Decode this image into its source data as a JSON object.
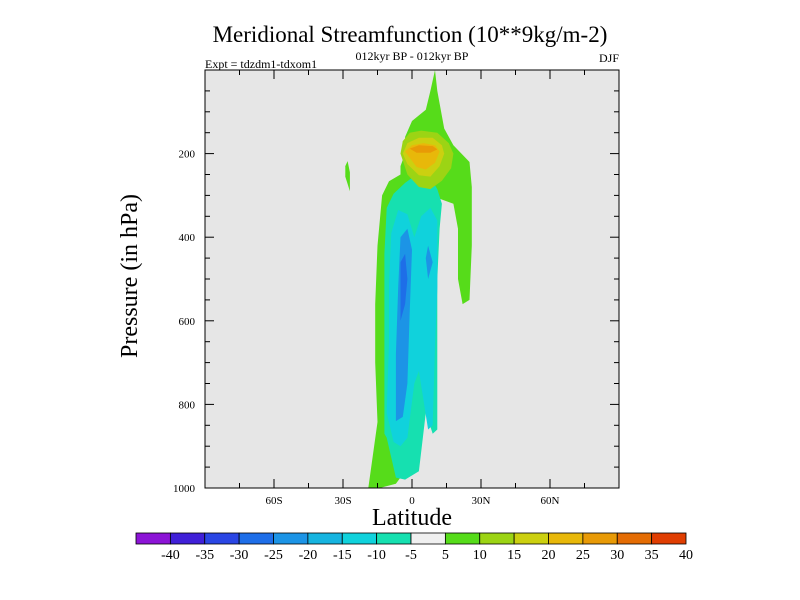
{
  "chart_data": {
    "type": "heatmap",
    "title": "Meridional Streamfunction (10**9kg/m-2)",
    "left_subtitle": "Expt = tdzdm1-tdxom1",
    "center_subtitle": "012kyr BP - 012kyr BP",
    "right_subtitle": "DJF",
    "xlabel": "Latitude",
    "ylabel": "Pressure (in hPa)",
    "xlim": [
      -90,
      90
    ],
    "ylim": [
      1000,
      0
    ],
    "x_ticks": [
      {
        "value": -60,
        "label": "60S"
      },
      {
        "value": -30,
        "label": "30S"
      },
      {
        "value": 0,
        "label": "0"
      },
      {
        "value": 30,
        "label": "30N"
      },
      {
        "value": 60,
        "label": "60N"
      }
    ],
    "y_ticks": [
      {
        "value": 200,
        "label": "200"
      },
      {
        "value": 400,
        "label": "400"
      },
      {
        "value": 600,
        "label": "600"
      },
      {
        "value": 800,
        "label": "800"
      },
      {
        "value": 1000,
        "label": "1000"
      }
    ],
    "colorbar": {
      "labels": [
        "-40",
        "-35",
        "-30",
        "-25",
        "-20",
        "-15",
        "-10",
        "-5",
        "5",
        "10",
        "15",
        "20",
        "25",
        "30",
        "35",
        "40"
      ],
      "colors": [
        "#8c14d6",
        "#4020d8",
        "#2a46e4",
        "#1e6ee8",
        "#1c94e6",
        "#16b4e0",
        "#10d2dc",
        "#16e0b0",
        "#f0f0f0",
        "#56dc1a",
        "#9cd414",
        "#ccd010",
        "#e8b80a",
        "#e89a06",
        "#e46c04",
        "#e03e02"
      ]
    },
    "contours": [
      {
        "level": "5 to 10",
        "color": "#56dc1a",
        "points": [
          [
            -19,
            1000
          ],
          [
            -15,
            842
          ],
          [
            -16,
            700
          ],
          [
            -16,
            560
          ],
          [
            -15,
            420
          ],
          [
            -13,
            300
          ],
          [
            -10,
            266
          ],
          [
            -5,
            250
          ],
          [
            -5,
            230
          ],
          [
            -3,
            200
          ],
          [
            -3,
            160
          ],
          [
            0,
            122
          ],
          [
            6,
            95
          ],
          [
            8,
            50
          ],
          [
            10,
            0
          ],
          [
            11,
            50
          ],
          [
            14,
            140
          ],
          [
            18,
            180
          ],
          [
            25,
            220
          ],
          [
            26,
            280
          ],
          [
            26,
            420
          ],
          [
            25,
            550
          ],
          [
            22,
            560
          ],
          [
            20,
            500
          ],
          [
            20,
            380
          ],
          [
            18,
            320
          ],
          [
            8,
            300
          ],
          [
            4,
            320
          ],
          [
            4,
            420
          ],
          [
            4,
            560
          ],
          [
            3,
            760
          ],
          [
            2,
            880
          ],
          [
            -3,
            960
          ],
          [
            -7,
            990
          ],
          [
            -14,
            1000
          ]
        ]
      },
      {
        "level": "5 to 10",
        "color": "#56dc1a",
        "points": [
          [
            -28,
            218
          ],
          [
            -27,
            245
          ],
          [
            -27,
            290
          ],
          [
            -29,
            255
          ],
          [
            -29,
            230
          ]
        ]
      },
      {
        "level": "-5 to -10",
        "color": "#16e0b0",
        "points": [
          [
            -12,
            870
          ],
          [
            -12,
            720
          ],
          [
            -12,
            580
          ],
          [
            -12,
            440
          ],
          [
            -11,
            330
          ],
          [
            -8,
            296
          ],
          [
            -3,
            270
          ],
          [
            2,
            250
          ],
          [
            7,
            248
          ],
          [
            11,
            285
          ],
          [
            13,
            320
          ],
          [
            12,
            380
          ],
          [
            11,
            500
          ],
          [
            11,
            640
          ],
          [
            11,
            780
          ],
          [
            11,
            860
          ],
          [
            9,
            870
          ],
          [
            6,
            820
          ],
          [
            3,
            960
          ],
          [
            -3,
            980
          ],
          [
            -7,
            975
          ],
          [
            -11,
            880
          ]
        ]
      },
      {
        "level": "-10 to -15",
        "color": "#10d2dc",
        "points": [
          [
            -11,
            820
          ],
          [
            -10,
            650
          ],
          [
            -10,
            510
          ],
          [
            -9,
            390
          ],
          [
            -6,
            335
          ],
          [
            -2,
            345
          ],
          [
            1,
            400
          ],
          [
            4,
            350
          ],
          [
            8,
            330
          ],
          [
            11,
            360
          ],
          [
            11,
            520
          ],
          [
            10,
            660
          ],
          [
            9,
            850
          ],
          [
            7,
            860
          ],
          [
            5,
            790
          ],
          [
            3,
            720
          ],
          [
            1,
            750
          ],
          [
            -2,
            880
          ],
          [
            -5,
            900
          ],
          [
            -8,
            890
          ]
        ]
      },
      {
        "level": "-15 to -20",
        "color": "#1c94e6",
        "points": [
          [
            -7,
            840
          ],
          [
            -7,
            680
          ],
          [
            -6,
            520
          ],
          [
            -5,
            400
          ],
          [
            -2,
            380
          ],
          [
            0,
            430
          ],
          [
            -1,
            580
          ],
          [
            -2,
            750
          ],
          [
            -4,
            830
          ]
        ]
      },
      {
        "level": "-20 to -25",
        "color": "#1e6ee8",
        "points": [
          [
            -5,
            600
          ],
          [
            -5,
            460
          ],
          [
            -3,
            440
          ],
          [
            -2,
            500
          ],
          [
            -3,
            560
          ]
        ]
      },
      {
        "level": "-15 to -20",
        "color": "#1c94e6",
        "points": [
          [
            6,
            450
          ],
          [
            7,
            420
          ],
          [
            9,
            460
          ],
          [
            7,
            500
          ]
        ]
      },
      {
        "level": "10 to 15",
        "color": "#9cd414",
        "points": [
          [
            -5,
            200
          ],
          [
            -4,
            170
          ],
          [
            -1,
            150
          ],
          [
            4,
            145
          ],
          [
            11,
            150
          ],
          [
            16,
            175
          ],
          [
            18,
            200
          ],
          [
            17,
            235
          ],
          [
            13,
            265
          ],
          [
            8,
            285
          ],
          [
            3,
            280
          ],
          [
            -2,
            250
          ]
        ]
      },
      {
        "level": "15 to 20",
        "color": "#ccd010",
        "points": [
          [
            -4,
            200
          ],
          [
            -2,
            175
          ],
          [
            3,
            162
          ],
          [
            9,
            162
          ],
          [
            13,
            180
          ],
          [
            14,
            200
          ],
          [
            12,
            230
          ],
          [
            8,
            255
          ],
          [
            3,
            252
          ],
          [
            -2,
            225
          ]
        ]
      },
      {
        "level": "20 to 25",
        "color": "#e8b80a",
        "points": [
          [
            -3,
            195
          ],
          [
            0,
            180
          ],
          [
            5,
            175
          ],
          [
            10,
            180
          ],
          [
            12,
            195
          ],
          [
            10,
            222
          ],
          [
            6,
            238
          ],
          [
            2,
            232
          ],
          [
            -1,
            210
          ]
        ]
      },
      {
        "level": "25 to 30",
        "color": "#e89a06",
        "points": [
          [
            -1,
            188
          ],
          [
            3,
            180
          ],
          [
            9,
            182
          ],
          [
            11,
            190
          ],
          [
            8,
            198
          ],
          [
            2,
            198
          ]
        ]
      }
    ]
  }
}
